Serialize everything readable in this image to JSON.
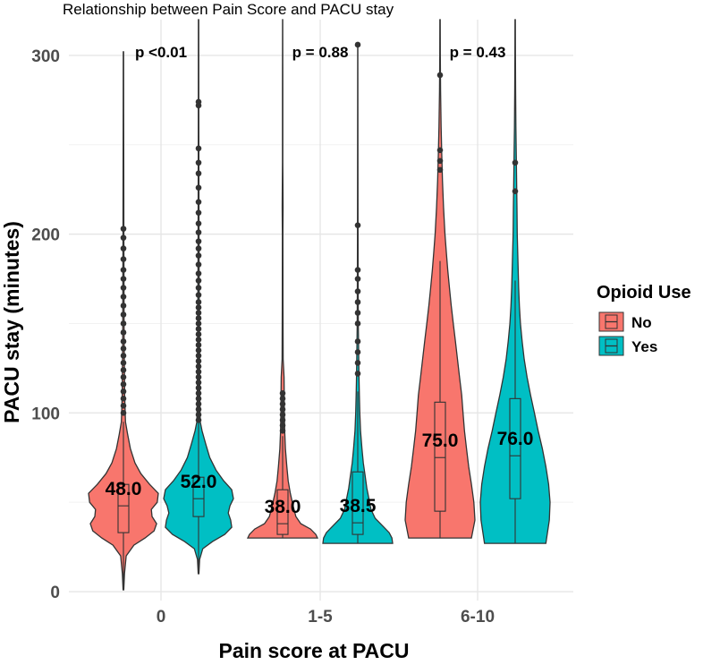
{
  "chart_data": {
    "type": "violin",
    "title": "Relationship between Pain Score and PACU stay",
    "xlabel": "Pain score at PACU",
    "ylabel": "PACU stay (minutes)",
    "ylim": [
      -5,
      320
    ],
    "yticks": [
      0,
      100,
      200,
      300
    ],
    "categories": [
      "0",
      "1-5",
      "6-10"
    ],
    "legend": {
      "title": "Opioid Use",
      "position": "right",
      "entries": [
        {
          "name": "No",
          "color": "#F8766D"
        },
        {
          "name": "Yes",
          "color": "#00BFC4"
        }
      ]
    },
    "p_values": [
      "p <0.01",
      "p = 0.88",
      "p = 0.43"
    ],
    "series": [
      {
        "name": "No",
        "color": "#F8766D",
        "groups": [
          {
            "category": "0",
            "min": 1,
            "max": 302,
            "q1": 33,
            "median": 48.0,
            "q3": 60,
            "whisker_low": 1,
            "whisker_high": 95,
            "median_label": "48.0",
            "profile": [
              [
                1,
                0.01
              ],
              [
                10,
                0.03
              ],
              [
                20,
                0.08
              ],
              [
                26,
                0.3
              ],
              [
                30,
                0.62
              ],
              [
                34,
                0.88
              ],
              [
                38,
                0.95
              ],
              [
                42,
                0.82
              ],
              [
                46,
                0.8
              ],
              [
                50,
                0.97
              ],
              [
                55,
                1.0
              ],
              [
                60,
                0.75
              ],
              [
                66,
                0.5
              ],
              [
                72,
                0.33
              ],
              [
                80,
                0.2
              ],
              [
                88,
                0.12
              ],
              [
                95,
                0.06
              ],
              [
                110,
                0.035
              ],
              [
                140,
                0.02
              ],
              [
                200,
                0.012
              ],
              [
                260,
                0.008
              ],
              [
                302,
                0.005
              ]
            ],
            "outliers": [
              100,
              104,
              108,
              112,
              116,
              120,
              124,
              128,
              132,
              136,
              140,
              145,
              150,
              155,
              160,
              165,
              170,
              175,
              180,
              186,
              192,
              198,
              203
            ]
          },
          {
            "category": "1-5",
            "min": 30,
            "max": 320,
            "q1": 32,
            "median": 38.0,
            "q3": 57,
            "whisker_low": 30,
            "whisker_high": 87,
            "median_label": "38.0",
            "profile": [
              [
                30,
                1.0
              ],
              [
                32,
                0.95
              ],
              [
                35,
                0.8
              ],
              [
                38,
                0.52
              ],
              [
                42,
                0.38
              ],
              [
                48,
                0.3
              ],
              [
                55,
                0.22
              ],
              [
                62,
                0.16
              ],
              [
                70,
                0.12
              ],
              [
                80,
                0.08
              ],
              [
                90,
                0.06
              ],
              [
                100,
                0.05
              ],
              [
                110,
                0.045
              ],
              [
                120,
                0.04
              ],
              [
                130,
                0.015
              ],
              [
                160,
                0.01
              ],
              [
                200,
                0.008
              ],
              [
                215,
                0.012
              ],
              [
                240,
                0.006
              ],
              [
                280,
                0.004
              ],
              [
                320,
                0.003
              ]
            ],
            "outliers": [
              90,
              93,
              96,
              99,
              102,
              105,
              108,
              111
            ]
          },
          {
            "category": "6-10",
            "min": 30,
            "max": 320,
            "q1": 45,
            "median": 75.0,
            "q3": 106,
            "whisker_low": 30,
            "whisker_high": 185,
            "median_label": "75.0",
            "profile": [
              [
                30,
                0.9
              ],
              [
                40,
                1.0
              ],
              [
                50,
                0.97
              ],
              [
                60,
                0.9
              ],
              [
                70,
                0.82
              ],
              [
                80,
                0.76
              ],
              [
                90,
                0.7
              ],
              [
                100,
                0.66
              ],
              [
                110,
                0.62
              ],
              [
                120,
                0.56
              ],
              [
                130,
                0.5
              ],
              [
                140,
                0.44
              ],
              [
                150,
                0.38
              ],
              [
                160,
                0.32
              ],
              [
                170,
                0.27
              ],
              [
                180,
                0.22
              ],
              [
                190,
                0.18
              ],
              [
                200,
                0.14
              ],
              [
                215,
                0.1
              ],
              [
                230,
                0.07
              ],
              [
                245,
                0.05
              ],
              [
                260,
                0.03
              ],
              [
                280,
                0.015
              ],
              [
                300,
                0.008
              ],
              [
                320,
                0.004
              ]
            ],
            "outliers": [
              236,
              241,
              247,
              289
            ]
          }
        ]
      },
      {
        "name": "Yes",
        "color": "#00BFC4",
        "groups": [
          {
            "category": "0",
            "min": 10,
            "max": 320,
            "q1": 42,
            "median": 52.0,
            "q3": 64,
            "whisker_low": 10,
            "whisker_high": 95,
            "median_label": "52.0",
            "profile": [
              [
                10,
                0.01
              ],
              [
                18,
                0.03
              ],
              [
                24,
                0.12
              ],
              [
                28,
                0.4
              ],
              [
                32,
                0.75
              ],
              [
                36,
                0.95
              ],
              [
                40,
                0.92
              ],
              [
                44,
                0.85
              ],
              [
                48,
                0.9
              ],
              [
                52,
                1.0
              ],
              [
                57,
                0.95
              ],
              [
                62,
                0.72
              ],
              [
                68,
                0.5
              ],
              [
                75,
                0.32
              ],
              [
                83,
                0.2
              ],
              [
                90,
                0.1
              ],
              [
                95,
                0.05
              ],
              [
                110,
                0.035
              ],
              [
                150,
                0.02
              ],
              [
                200,
                0.012
              ],
              [
                260,
                0.008
              ],
              [
                320,
                0.004
              ]
            ],
            "outliers": [
              96,
              99,
              102,
              105,
              108,
              111,
              114,
              117,
              120,
              123,
              126,
              129,
              132,
              135,
              138,
              141,
              144,
              147,
              150,
              153,
              156,
              159,
              162,
              166,
              170,
              174,
              178,
              183,
              188,
              192,
              196,
              201,
              206,
              212,
              218,
              226,
              234,
              240,
              248,
              272,
              274
            ]
          },
          {
            "category": "1-5",
            "min": 27,
            "max": 306,
            "q1": 32,
            "median": 38.5,
            "q3": 67,
            "whisker_low": 27,
            "whisker_high": 112,
            "median_label": "38.5",
            "profile": [
              [
                27,
                1.0
              ],
              [
                30,
                0.98
              ],
              [
                33,
                0.9
              ],
              [
                37,
                0.7
              ],
              [
                41,
                0.5
              ],
              [
                46,
                0.38
              ],
              [
                52,
                0.32
              ],
              [
                58,
                0.26
              ],
              [
                65,
                0.21
              ],
              [
                72,
                0.16
              ],
              [
                80,
                0.12
              ],
              [
                90,
                0.08
              ],
              [
                100,
                0.06
              ],
              [
                110,
                0.045
              ],
              [
                120,
                0.035
              ],
              [
                135,
                0.025
              ],
              [
                150,
                0.015
              ],
              [
                180,
                0.01
              ],
              [
                205,
                0.008
              ],
              [
                250,
                0.005
              ],
              [
                306,
                0.003
              ]
            ],
            "outliers": [
              122,
              128,
              134,
              140,
              150,
              156,
              162,
              168,
              175,
              180,
              205,
              306
            ]
          },
          {
            "category": "6-10",
            "min": 27,
            "max": 320,
            "q1": 52,
            "median": 76.0,
            "q3": 108,
            "whisker_low": 27,
            "whisker_high": 174,
            "median_label": "76.0",
            "profile": [
              [
                27,
                0.88
              ],
              [
                40,
                0.98
              ],
              [
                50,
                1.0
              ],
              [
                60,
                0.96
              ],
              [
                70,
                0.88
              ],
              [
                80,
                0.78
              ],
              [
                90,
                0.66
              ],
              [
                100,
                0.55
              ],
              [
                110,
                0.44
              ],
              [
                120,
                0.34
              ],
              [
                130,
                0.26
              ],
              [
                140,
                0.2
              ],
              [
                150,
                0.15
              ],
              [
                160,
                0.12
              ],
              [
                170,
                0.1
              ],
              [
                185,
                0.08
              ],
              [
                200,
                0.06
              ],
              [
                215,
                0.05
              ],
              [
                230,
                0.04
              ],
              [
                245,
                0.03
              ],
              [
                260,
                0.02
              ],
              [
                280,
                0.012
              ],
              [
                300,
                0.007
              ],
              [
                320,
                0.004
              ]
            ],
            "outliers": [
              224,
              240
            ]
          }
        ]
      }
    ]
  }
}
